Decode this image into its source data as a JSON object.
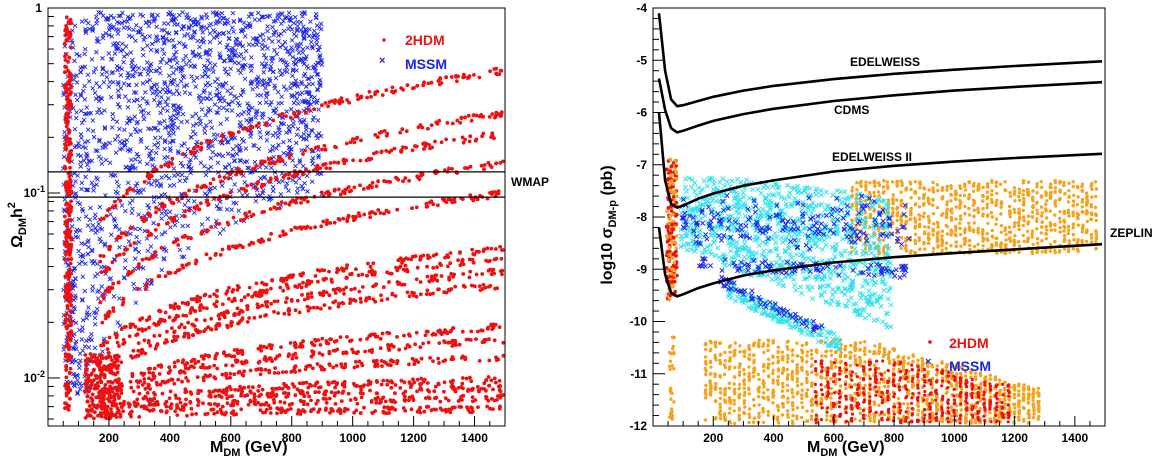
{
  "colors": {
    "hdm": "#ee1111",
    "mssm": "#1b24e6",
    "mssm_light": "#33e1ee",
    "orange": "#f5a21c",
    "line": "#000000"
  },
  "chart_data": [
    {
      "type": "scatter",
      "xlabel": "M",
      "xlabel_sub": "DM",
      "xlabel_unit": " (GeV)",
      "ylabel": "Ω",
      "ylabel_sub": "DM",
      "ylabel_rest": "h",
      "ylabel_sup": "2",
      "xlim": [
        0,
        1500
      ],
      "ylim": [
        0.0055,
        1
      ],
      "y_scale": "log",
      "x_ticks": [
        "200",
        "400",
        "600",
        "800",
        "1000",
        "1200",
        "1400"
      ],
      "y_ticks": [
        "1",
        "10",
        "10"
      ],
      "y_tick_exponents": [
        "",
        "-1",
        "-2"
      ],
      "hlines": [
        {
          "y": 0.13,
          "label": ""
        },
        {
          "y": 0.095,
          "label": "WMAP"
        }
      ],
      "legend": [
        {
          "label": "2HDM",
          "marker": "•"
        },
        {
          "label": "MSSM",
          "marker": "×"
        }
      ],
      "series": [
        {
          "name": "2HDM",
          "note_points": "dense bands; approximate"
        },
        {
          "name": "MSSM",
          "note_points": "dense cloud; approximate"
        }
      ],
      "bands_2hdm": [
        {
          "y_at_200": 0.08,
          "y_at_1500": 0.46
        },
        {
          "y_at_200": 0.05,
          "y_at_1500": 0.27
        },
        {
          "y_at_200": 0.04,
          "y_at_1500": 0.21
        },
        {
          "y_at_200": 0.03,
          "y_at_1500": 0.145
        },
        {
          "y_at_200": 0.022,
          "y_at_1500": 0.1
        },
        {
          "y_at_200": 0.016,
          "y_at_1500": 0.05
        },
        {
          "y_at_200": 0.014,
          "y_at_1500": 0.045
        },
        {
          "y_at_200": 0.012,
          "y_at_1500": 0.038
        },
        {
          "y_at_200": 0.011,
          "y_at_1500": 0.032
        },
        {
          "y_at_200": 0.009,
          "y_at_1500": 0.019
        },
        {
          "y_at_200": 0.0085,
          "y_at_1500": 0.016
        },
        {
          "y_at_200": 0.008,
          "y_at_1500": 0.013
        },
        {
          "y_at_200": 0.0075,
          "y_at_1500": 0.0098
        },
        {
          "y_at_200": 0.007,
          "y_at_1500": 0.0088
        },
        {
          "y_at_200": 0.0066,
          "y_at_1500": 0.0078
        },
        {
          "y_at_200": 0.0063,
          "y_at_1500": 0.0068
        }
      ]
    },
    {
      "type": "scatter",
      "xlabel": "M",
      "xlabel_sub": "DM",
      "xlabel_unit": " (GeV)",
      "ylabel": "log10 σ",
      "ylabel_sub": "DM-p",
      "ylabel_unit": " (pb)",
      "xlim": [
        0,
        1500
      ],
      "ylim": [
        -12,
        -4
      ],
      "x_ticks": [
        "200",
        "400",
        "600",
        "800",
        "1000",
        "1200",
        "1400"
      ],
      "y_ticks": [
        "-4",
        "-5",
        "-6",
        "-7",
        "-8",
        "-9",
        "-10",
        "-11",
        "-12"
      ],
      "curves": [
        {
          "label": "EDELWEISS",
          "points": [
            [
              20,
              -4.1
            ],
            [
              40,
              -5.2
            ],
            [
              60,
              -5.75
            ],
            [
              80,
              -5.88
            ],
            [
              100,
              -5.86
            ],
            [
              150,
              -5.78
            ],
            [
              200,
              -5.7
            ],
            [
              300,
              -5.58
            ],
            [
              400,
              -5.49
            ],
            [
              600,
              -5.36
            ],
            [
              800,
              -5.26
            ],
            [
              1000,
              -5.18
            ],
            [
              1200,
              -5.11
            ],
            [
              1490,
              -5.02
            ]
          ]
        },
        {
          "label": "CDMS",
          "points": [
            [
              20,
              -5.35
            ],
            [
              40,
              -5.95
            ],
            [
              60,
              -6.3
            ],
            [
              80,
              -6.38
            ],
            [
              100,
              -6.35
            ],
            [
              150,
              -6.25
            ],
            [
              200,
              -6.16
            ],
            [
              300,
              -6.03
            ],
            [
              400,
              -5.93
            ],
            [
              600,
              -5.78
            ],
            [
              800,
              -5.67
            ],
            [
              1000,
              -5.58
            ],
            [
              1200,
              -5.51
            ],
            [
              1490,
              -5.42
            ]
          ]
        },
        {
          "label": "EDELWEISS II",
          "points": [
            [
              20,
              -6.0
            ],
            [
              40,
              -7.3
            ],
            [
              60,
              -7.75
            ],
            [
              80,
              -7.82
            ],
            [
              100,
              -7.78
            ],
            [
              150,
              -7.65
            ],
            [
              200,
              -7.55
            ],
            [
              300,
              -7.4
            ],
            [
              400,
              -7.3
            ],
            [
              600,
              -7.13
            ],
            [
              800,
              -7.02
            ],
            [
              1000,
              -6.94
            ],
            [
              1200,
              -6.87
            ],
            [
              1490,
              -6.79
            ]
          ]
        },
        {
          "label": "ZEPLIN",
          "points": [
            [
              20,
              -8.2
            ],
            [
              40,
              -9.1
            ],
            [
              60,
              -9.45
            ],
            [
              80,
              -9.52
            ],
            [
              100,
              -9.48
            ],
            [
              150,
              -9.36
            ],
            [
              200,
              -9.27
            ],
            [
              300,
              -9.12
            ],
            [
              400,
              -9.02
            ],
            [
              600,
              -8.87
            ],
            [
              800,
              -8.77
            ],
            [
              1000,
              -8.69
            ],
            [
              1200,
              -8.62
            ],
            [
              1490,
              -8.52
            ]
          ]
        }
      ],
      "legend": [
        {
          "label": "2HDM",
          "marker": "•"
        },
        {
          "label": "MSSM",
          "marker": "×"
        }
      ],
      "series": [
        {
          "name": "2HDM",
          "note_points": "red dots; approximate"
        },
        {
          "name": "MSSM",
          "note_points": "blue/cyan crosses; approximate"
        }
      ]
    }
  ]
}
